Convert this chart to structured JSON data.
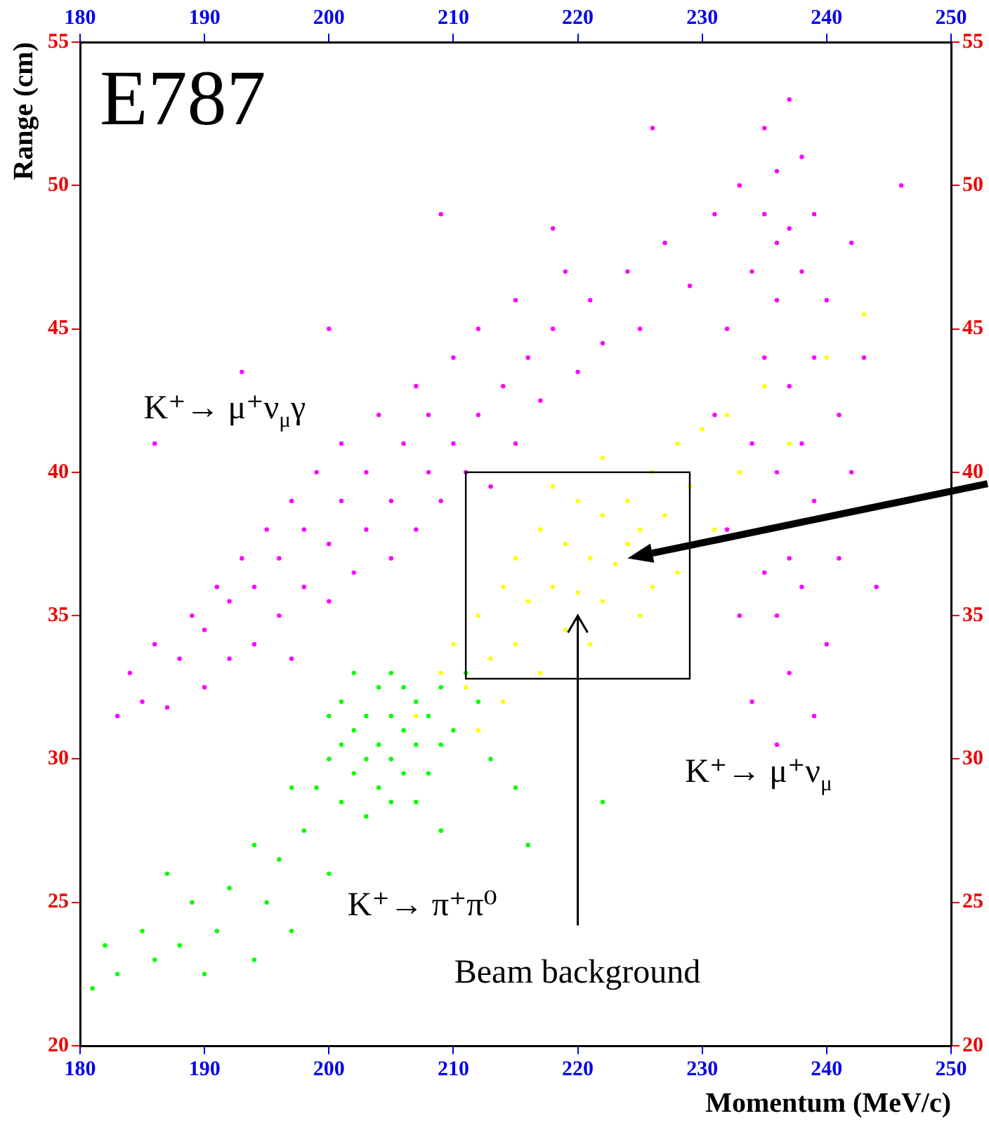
{
  "chart_data": {
    "type": "scatter",
    "title": "E787",
    "xlabel": "Momentum (MeV/c)",
    "ylabel": "Range (cm)",
    "xlim": [
      180,
      250
    ],
    "xticks": [
      180,
      190,
      200,
      210,
      220,
      230,
      240,
      250
    ],
    "x2lim": [
      180,
      250
    ],
    "x2ticks": [
      180,
      190,
      200,
      210,
      220,
      230,
      240,
      250
    ],
    "ylim": [
      20,
      55
    ],
    "yticks": [
      20,
      25,
      30,
      35,
      40,
      45,
      50,
      55
    ],
    "y2lim": [
      20,
      55
    ],
    "y2ticks": [
      20,
      25,
      30,
      35,
      40,
      45,
      50,
      55
    ],
    "marker": "circle",
    "grid": false,
    "legend": false,
    "annotations": [
      "K⁺→ μ⁺ν$_{μ}$γ",
      "K⁺→ μ⁺ν$_{μ}$",
      "K⁺→ π⁺π⁰",
      "Beam background"
    ],
    "series": [
      {
        "color": "#ff00ff",
        "x": [
          183,
          184,
          185,
          186,
          187,
          188,
          189,
          190,
          190,
          191,
          192,
          192,
          193,
          194,
          194,
          195,
          196,
          196,
          197,
          197,
          198,
          198,
          199,
          200,
          200,
          201,
          201,
          202,
          203,
          203,
          204,
          205,
          205,
          206,
          207,
          207,
          208,
          208,
          209,
          210,
          210,
          211,
          212,
          212,
          213,
          214,
          215,
          215,
          216,
          217,
          218,
          219,
          220,
          221,
          222,
          224,
          225,
          227,
          229,
          231,
          186,
          193,
          200,
          209,
          218,
          226,
          231,
          232,
          232,
          233,
          233,
          234,
          234,
          234,
          235,
          235,
          235,
          235,
          236,
          236,
          236,
          236,
          236,
          236,
          237,
          237,
          237,
          237,
          237,
          238,
          238,
          238,
          238,
          239,
          239,
          239,
          239,
          240,
          240,
          241,
          241,
          242,
          242,
          243,
          244,
          246
        ],
        "values": [
          31.5,
          33,
          32,
          34,
          31.8,
          33.5,
          35,
          32.5,
          34.5,
          36,
          33.5,
          35.5,
          37,
          34,
          36,
          38,
          35,
          37,
          33.5,
          39,
          36,
          38,
          40,
          35.5,
          37.5,
          39,
          41,
          36.5,
          38,
          40,
          42,
          37,
          39,
          41,
          38,
          43,
          40,
          42,
          39,
          41,
          44,
          40,
          42,
          45,
          39.5,
          43,
          41,
          46,
          44,
          42.5,
          45,
          47,
          43.5,
          46,
          44.5,
          47,
          45,
          48,
          46.5,
          49,
          41,
          43.5,
          45,
          49,
          48.5,
          52,
          42,
          45,
          38,
          50,
          35,
          47,
          41,
          32,
          52,
          49,
          44,
          36.5,
          48,
          50.5,
          46,
          40,
          35,
          30.5,
          53,
          48.5,
          43,
          37,
          33,
          51,
          47,
          41,
          36,
          49,
          44,
          39,
          31.5,
          46,
          34,
          42,
          37,
          48,
          40,
          44,
          36,
          50
        ]
      },
      {
        "color": "#ffff00",
        "x": [
          209,
          210,
          211,
          212,
          213,
          214,
          215,
          215,
          216,
          217,
          217,
          218,
          219,
          219,
          220,
          220,
          221,
          221,
          222,
          222,
          223,
          224,
          224,
          225,
          225,
          226,
          226,
          227,
          228,
          228,
          229,
          230,
          231,
          232,
          233,
          235,
          237,
          240,
          243,
          212,
          214,
          207,
          222,
          218
        ],
        "values": [
          33,
          34,
          32.5,
          35,
          33.5,
          36,
          34,
          37,
          35.5,
          33,
          38,
          36,
          34.5,
          37.5,
          35.8,
          39,
          34,
          37,
          38.5,
          35.5,
          36.8,
          39,
          37.5,
          38,
          35,
          40,
          36,
          38.5,
          41,
          36.5,
          39.5,
          41.5,
          38,
          42,
          40,
          43,
          41,
          44,
          45.5,
          31,
          32,
          31.5,
          40.5,
          39.5
        ]
      },
      {
        "color": "#00ff00",
        "x": [
          199,
          200,
          200,
          201,
          201,
          201,
          202,
          202,
          202,
          203,
          203,
          203,
          204,
          204,
          204,
          205,
          205,
          205,
          205,
          206,
          206,
          206,
          207,
          207,
          207,
          208,
          208,
          209,
          209,
          210,
          198,
          197,
          211,
          212,
          213,
          215,
          196,
          194,
          195,
          192,
          191,
          189,
          188,
          186,
          185,
          183,
          182,
          181,
          190,
          200,
          197,
          209,
          216,
          222,
          194,
          187
        ],
        "values": [
          29,
          30,
          31.5,
          28.5,
          30.5,
          32,
          29.5,
          31,
          33,
          28,
          30,
          31.5,
          29,
          30.5,
          32.5,
          28.5,
          30,
          31.5,
          33,
          29.5,
          31,
          32.5,
          28.5,
          30.5,
          32,
          29.5,
          31.5,
          30.5,
          32.5,
          31,
          27.5,
          29,
          33,
          32,
          30,
          29,
          26.5,
          27,
          25,
          25.5,
          24,
          25,
          23.5,
          23,
          24,
          22.5,
          23.5,
          22,
          22.5,
          26,
          24,
          27.5,
          27,
          28.5,
          23,
          26
        ]
      }
    ]
  }
}
